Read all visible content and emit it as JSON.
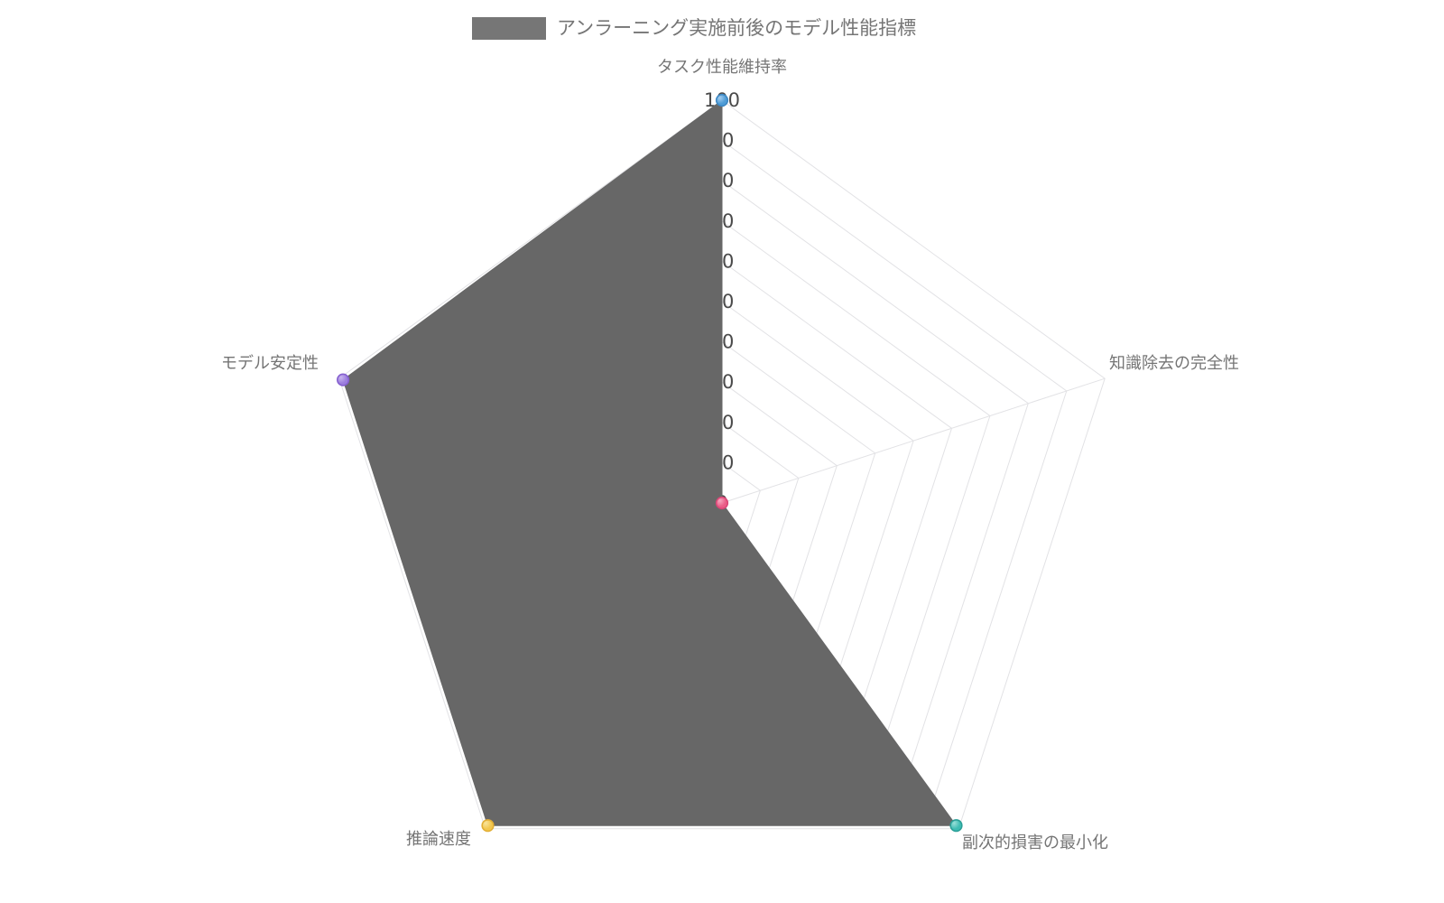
{
  "legend": {
    "label": "アンラーニング実施前後のモデル性能指標",
    "swatch_color": "#767676"
  },
  "chart_data": {
    "type": "radar",
    "title": "アンラーニング実施前後のモデル性能指標",
    "categories": [
      "タスク性能維持率",
      "知識除去の完全性",
      "副次的損害の最小化",
      "推論速度",
      "モデル安定性"
    ],
    "series": [
      {
        "name": "アンラーニング実施前後のモデル性能指標",
        "values": [
          100,
          0,
          99,
          99,
          99
        ],
        "fill_color": "#676767",
        "line_color": "#676767"
      }
    ],
    "radial_axis": {
      "min": 0,
      "max": 100,
      "tick_step": 10,
      "tick_labels": [
        "0",
        "10",
        "20",
        "30",
        "40",
        "50",
        "60",
        "70",
        "80",
        "90",
        "100"
      ],
      "tick_color": "#4a4a4a"
    },
    "angular_axis": {
      "label_color": "#757575"
    },
    "grid": {
      "shape": "linear",
      "rings": 10,
      "color": "#e2e2e5",
      "show": true
    },
    "markers": [
      {
        "category": "タスク性能維持率",
        "color": "#4f9cd6",
        "highlight": "#a6cdee",
        "stroke": "#3d88c4"
      },
      {
        "category": "知識除去の完全性",
        "color": "#ea5d87",
        "highlight": "#f6a8c0",
        "stroke": "#d94777"
      },
      {
        "category": "副次的損害の最小化",
        "color": "#3fbcb3",
        "highlight": "#9adfd8",
        "stroke": "#2b9f97"
      },
      {
        "category": "推論速度",
        "color": "#f3c74e",
        "highlight": "#f9e49c",
        "stroke": "#e2ae35"
      },
      {
        "category": "モデル安定性",
        "color": "#9c7ede",
        "highlight": "#c9b6ee",
        "stroke": "#8560cf"
      }
    ]
  }
}
